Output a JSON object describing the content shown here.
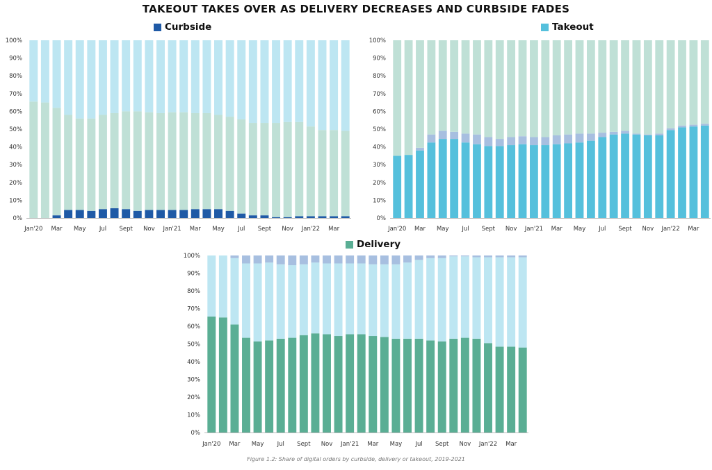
{
  "title": "TAKEOUT TAKES OVER AS DELIVERY DECREASES AND CURBSIDE FADES",
  "caption": "Figure 1.2: Share of digital orders by curbside, delivery or takeout, 2019-2021",
  "colors": {
    "curbside": "#1f5aa6",
    "takeout": "#55c0dc",
    "delivery": "#5aae94",
    "delivery_light": "#bfe0d6",
    "takeout_light": "#bde6f2",
    "curbside_light": "#a7bfe0",
    "zero_line": "#bbbbbb"
  },
  "chart_data": [
    {
      "type": "bar",
      "stacked": true,
      "legend": "Curbside",
      "highlight": "curbside",
      "yticks": [
        "0%",
        "10%",
        "20%",
        "30%",
        "40%",
        "50%",
        "60%",
        "70%",
        "80%",
        "90%",
        "100%"
      ],
      "ylim": [
        0,
        100
      ],
      "x_labels": [
        "Jan'20",
        "",
        "Mar",
        "",
        "May",
        "",
        "Jul",
        "",
        "Sept",
        "",
        "Nov",
        "",
        "Jan'21",
        "",
        "Mar",
        "",
        "May",
        "",
        "Jul",
        "",
        "Sept",
        "",
        "Nov",
        "",
        "Jan'22",
        "",
        "Mar",
        ""
      ],
      "stack_order": [
        "curbside",
        "delivery",
        "takeout"
      ],
      "series": [
        {
          "key": "curbside",
          "color": "#1f5aa6",
          "values": [
            0,
            0,
            1.5,
            4.5,
            4.5,
            4,
            5,
            5.5,
            5,
            4,
            4.5,
            4.5,
            4.5,
            4.5,
            5,
            5,
            5,
            4,
            2.5,
            1.5,
            1.5,
            0.5,
            0.5,
            1,
            1,
            1,
            1,
            1
          ]
        },
        {
          "key": "delivery",
          "color": "#bfe0d6",
          "values": [
            65.5,
            65,
            60.5,
            53.5,
            51.5,
            52,
            53,
            53.5,
            55,
            56,
            55,
            54.5,
            55,
            55,
            54,
            54,
            53,
            53,
            53,
            52,
            52,
            53,
            53.5,
            53,
            50.5,
            48.5,
            48.5,
            48
          ]
        },
        {
          "key": "takeout",
          "color": "#bde6f2",
          "values": [
            34.5,
            35,
            38,
            42,
            44,
            44,
            42,
            41,
            40,
            40,
            40.5,
            41,
            40.5,
            40.5,
            41,
            41,
            42,
            43,
            44.5,
            46.5,
            46.5,
            46.5,
            46,
            46,
            48.5,
            50.5,
            50.5,
            51
          ]
        }
      ]
    },
    {
      "type": "bar",
      "stacked": true,
      "legend": "Takeout",
      "highlight": "takeout",
      "yticks": [
        "0%",
        "10%",
        "20%",
        "30%",
        "40%",
        "50%",
        "60%",
        "70%",
        "80%",
        "90%",
        "100%"
      ],
      "ylim": [
        0,
        100
      ],
      "x_labels": [
        "Jan'20",
        "",
        "Mar",
        "",
        "May",
        "",
        "Jul",
        "",
        "Sept",
        "",
        "Nov",
        "",
        "Jan'21",
        "",
        "Mar",
        "",
        "May",
        "",
        "Jul",
        "",
        "Sept",
        "",
        "Nov",
        "",
        "Jan'22",
        "",
        "Mar",
        ""
      ],
      "stack_order": [
        "takeout",
        "curbside",
        "delivery"
      ],
      "series": [
        {
          "key": "takeout",
          "color": "#55c0dc",
          "values": [
            35,
            35.5,
            38,
            42.5,
            44.5,
            44.5,
            42.5,
            41.5,
            40.5,
            40.5,
            41,
            41.5,
            41,
            41,
            41.5,
            42,
            42.5,
            43.5,
            45.5,
            47,
            47.5,
            47,
            46.5,
            46.5,
            49.5,
            51,
            51.5,
            52
          ]
        },
        {
          "key": "curbside",
          "color": "#a7bfe0",
          "values": [
            0,
            0,
            1.5,
            4.5,
            4.5,
            4,
            5,
            5.5,
            5,
            4,
            4.5,
            4.5,
            4.5,
            4.5,
            5,
            5,
            5,
            4,
            2.5,
            1.5,
            1.5,
            0.5,
            0.5,
            1,
            1,
            1,
            1,
            1
          ]
        },
        {
          "key": "delivery",
          "color": "#bfe0d6",
          "values": [
            65,
            64.5,
            60.5,
            53,
            51,
            51.5,
            52.5,
            53,
            54.5,
            55.5,
            54.5,
            54,
            54.5,
            54.5,
            53.5,
            53,
            52.5,
            52.5,
            52,
            51.5,
            51,
            52.5,
            53,
            52.5,
            49.5,
            48,
            47.5,
            47
          ]
        }
      ]
    },
    {
      "type": "bar",
      "stacked": true,
      "legend": "Delivery",
      "highlight": "delivery",
      "yticks": [
        "0%",
        "10%",
        "20%",
        "30%",
        "40%",
        "50%",
        "60%",
        "70%",
        "80%",
        "90%",
        "100%"
      ],
      "ylim": [
        0,
        100
      ],
      "x_labels": [
        "Jan'20",
        "",
        "Mar",
        "",
        "May",
        "",
        "Jul",
        "",
        "Sept",
        "",
        "Nov",
        "",
        "Jan'21",
        "",
        "Mar",
        "",
        "May",
        "",
        "Jul",
        "",
        "Sept",
        "",
        "Nov",
        "",
        "Jan'22",
        "",
        "Mar",
        ""
      ],
      "stack_order": [
        "delivery",
        "takeout",
        "curbside"
      ],
      "series": [
        {
          "key": "delivery",
          "color": "#5aae94",
          "values": [
            65.5,
            65,
            61,
            53.5,
            51.5,
            52,
            53,
            53.5,
            55,
            56,
            55.5,
            54.5,
            55.5,
            55.5,
            54.5,
            54,
            53,
            53,
            53,
            52,
            51.5,
            53,
            53.5,
            53,
            50.5,
            48.5,
            48.5,
            48
          ]
        },
        {
          "key": "takeout",
          "color": "#bde6f2",
          "values": [
            34.5,
            35,
            37.5,
            42,
            44,
            44,
            42,
            41,
            40,
            40,
            40,
            41,
            40,
            40,
            40.5,
            41,
            42,
            43,
            44.5,
            46.5,
            47,
            46.5,
            46,
            46,
            48.5,
            50.5,
            50.5,
            51
          ]
        },
        {
          "key": "curbside",
          "color": "#a7bfe0",
          "values": [
            0,
            0,
            1.5,
            4.5,
            4.5,
            4,
            5,
            5.5,
            5,
            4,
            4.5,
            4.5,
            4.5,
            4.5,
            5,
            5,
            5,
            4,
            2.5,
            1.5,
            1.5,
            0.5,
            0.5,
            1,
            1,
            1,
            1,
            1
          ]
        }
      ]
    }
  ]
}
